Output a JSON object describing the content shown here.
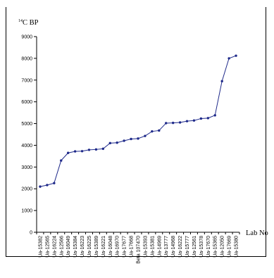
{
  "chart_data": {
    "type": "line",
    "ylabel": "14C BP",
    "ylabel_prefix": "14",
    "ylabel_main": "C BP",
    "xlabel": "Lab No",
    "ylim": [
      0,
      9000
    ],
    "yticks": [
      0,
      1000,
      2000,
      3000,
      4000,
      5000,
      6000,
      7000,
      8000,
      9000
    ],
    "grid": false,
    "legend": "none",
    "line_color": "#1f2a8a",
    "categories": [
      "Ua-15382",
      "Ua-12565",
      "Ua-16224",
      "Ua-12566",
      "Ua-16049",
      "Ua-15384",
      "Ua-16223",
      "Ua-16225",
      "Ua-15389",
      "Ua-16221",
      "Ua-16048",
      "Ua-16970",
      "Ua-17677",
      "Ua-17668",
      "Beta 107470",
      "Ua-15393",
      "Ua-15381",
      "Ua-14969",
      "Ua-13777",
      "Ua-14968",
      "Ua-16222",
      "Ua-15777",
      "Ua-12561",
      "Ua-15378",
      "Ua-17670",
      "Ua-15365",
      "Ua-12050",
      "Ua-17669",
      "Ua-15380"
    ],
    "values": [
      2100,
      2170,
      2260,
      3300,
      3650,
      3720,
      3730,
      3790,
      3810,
      3840,
      4100,
      4120,
      4210,
      4290,
      4310,
      4430,
      4640,
      4680,
      5020,
      5030,
      5050,
      5110,
      5140,
      5230,
      5250,
      5380,
      6950,
      8000,
      8120
    ]
  }
}
